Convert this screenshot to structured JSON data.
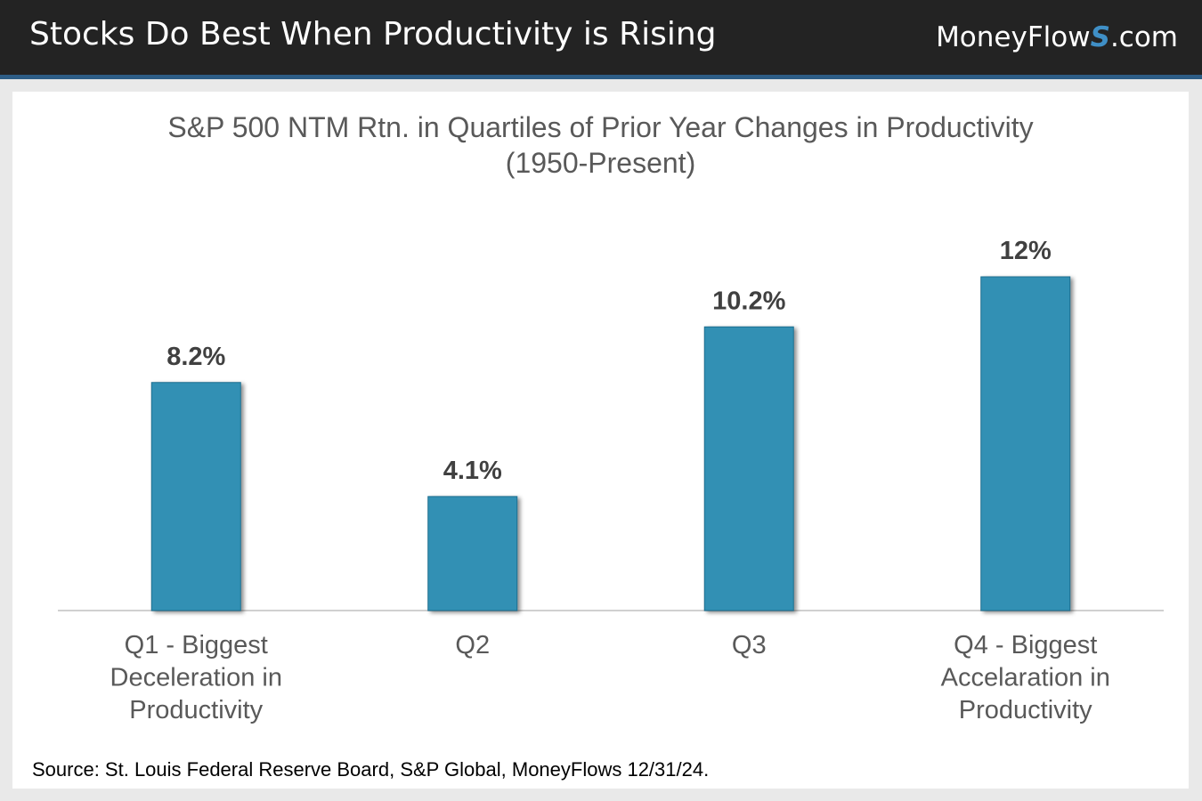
{
  "header": {
    "title": "Stocks Do Best When Productivity is Rising",
    "brand_prefix": "MoneyFlow",
    "brand_s": "S",
    "brand_suffix": ".com"
  },
  "colors": {
    "bar": "#3290b4",
    "bar_edge": "#1e6e8f",
    "header_bg": "#232323",
    "accent": "#2d5d86"
  },
  "source": "Source: St. Louis Federal Reserve Board, S&P Global, MoneyFlows 12/31/24.",
  "chart_data": {
    "type": "bar",
    "title_line1": "S&P 500 NTM Rtn. in Quartiles of Prior Year Changes in Productivity",
    "title_line2": "(1950-Present)",
    "categories": [
      [
        "Q1 - Biggest",
        "Deceleration in",
        "Productivity"
      ],
      [
        "Q2"
      ],
      [
        "Q3"
      ],
      [
        "Q4 - Biggest",
        "Accelaration in",
        "Productivity"
      ]
    ],
    "values": [
      8.2,
      4.1,
      10.2,
      12
    ],
    "labels": [
      "8.2%",
      "4.1%",
      "10.2%",
      "12%"
    ],
    "ylim": [
      0,
      12
    ],
    "xlabel": "",
    "ylabel": "",
    "grid": false
  }
}
